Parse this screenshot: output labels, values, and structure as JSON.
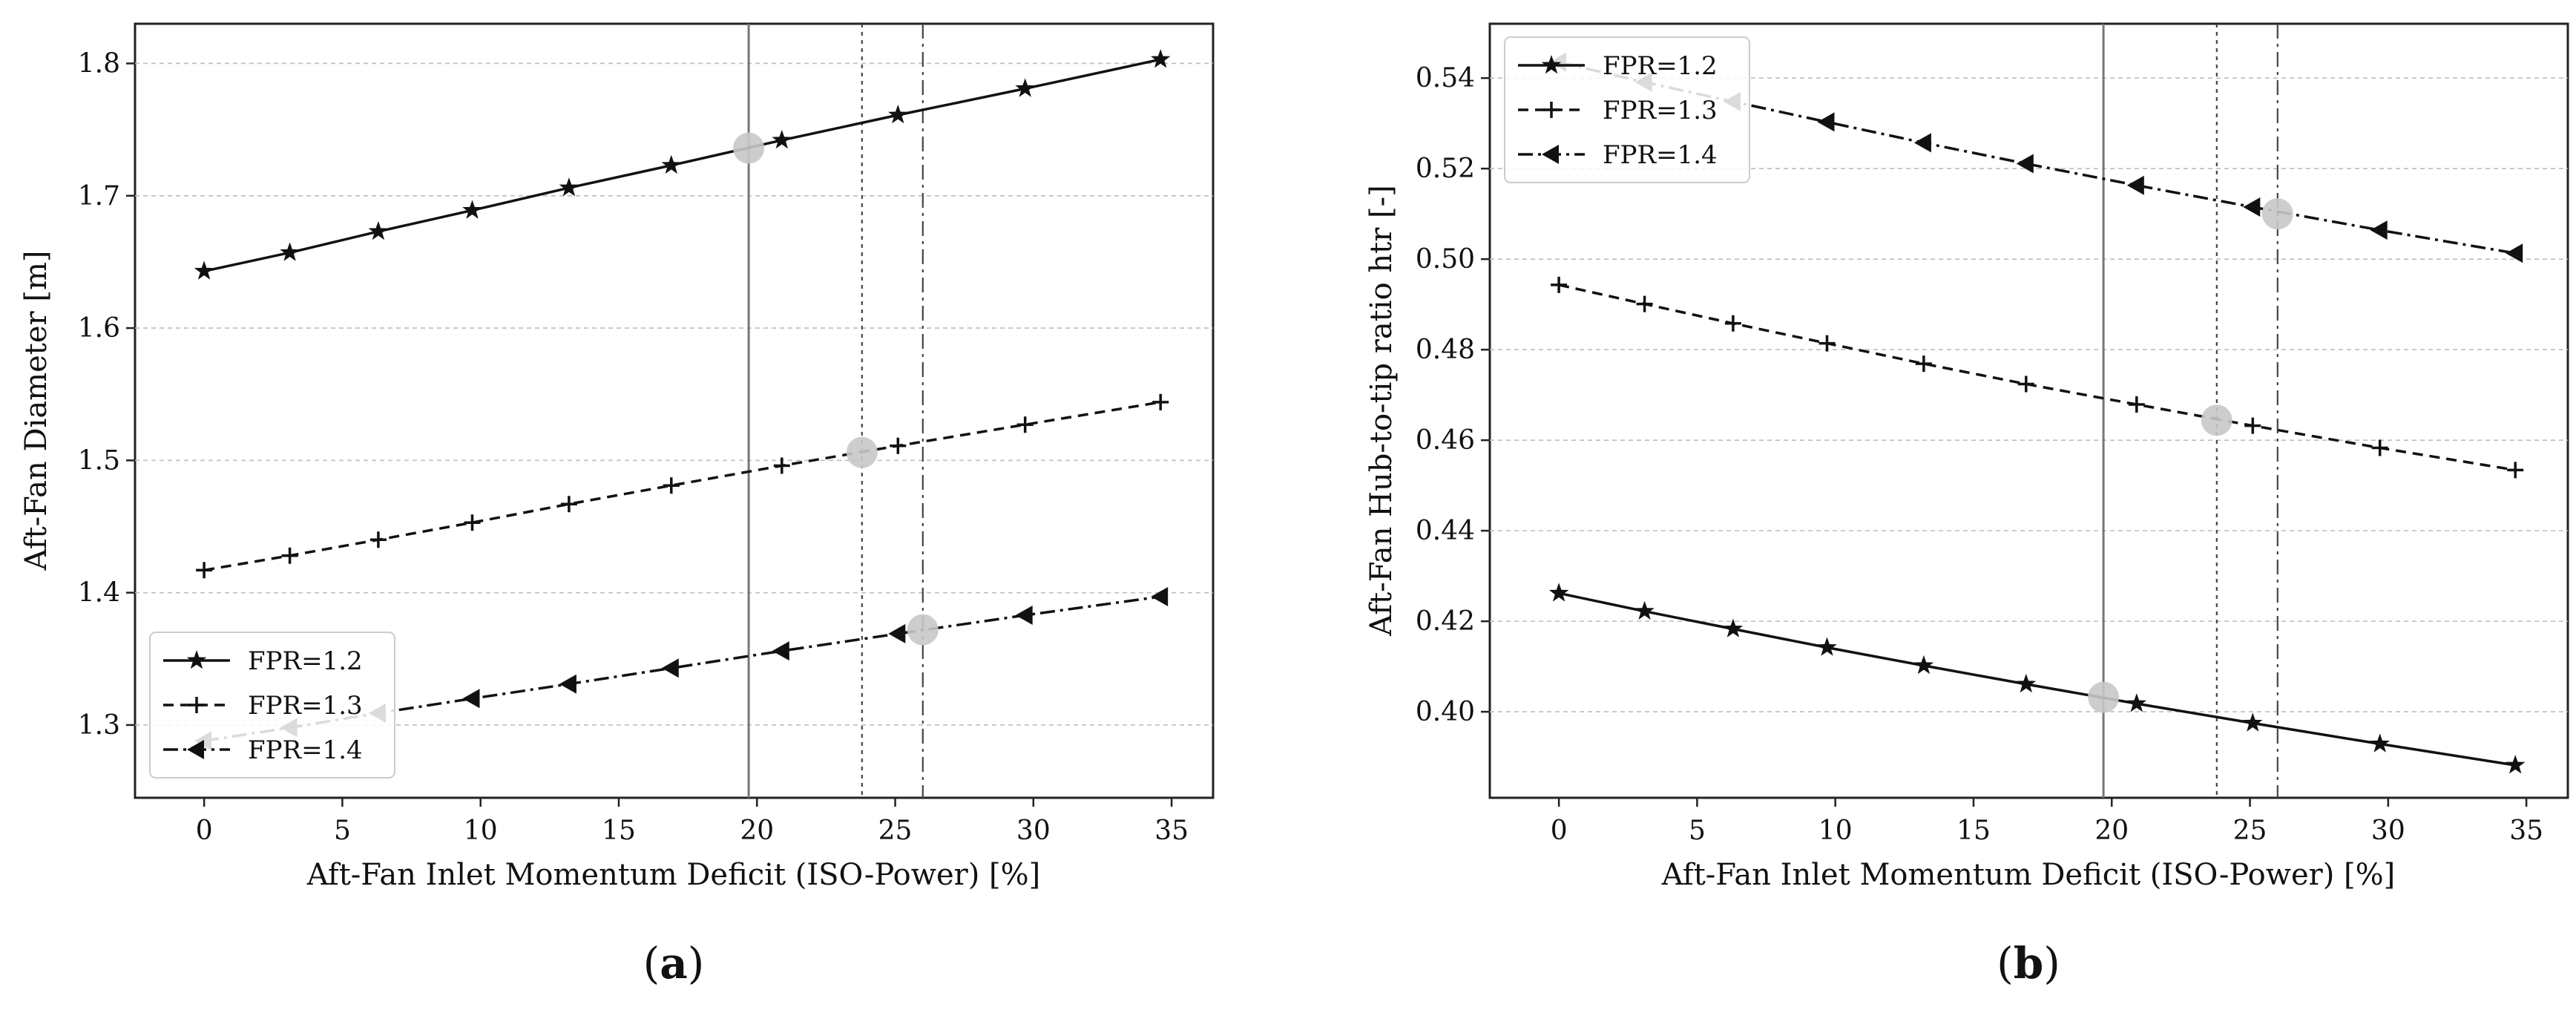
{
  "panel_labels": [
    {
      "open": "(",
      "letter": "a",
      "close": ")"
    },
    {
      "open": "(",
      "letter": "b",
      "close": ")"
    }
  ],
  "colors": {
    "line": "#111111",
    "highlight": "#c8c8c8",
    "vline": "#777777",
    "grid": "#bdbdbd"
  },
  "chart_data": [
    {
      "type": "line",
      "xlabel": "Aft-Fan Inlet Momentum Deficit (ISO-Power) [%]",
      "ylabel": "Aft-Fan Diameter [m]",
      "xlim": [
        -2.5,
        36.5
      ],
      "ylim": [
        1.245,
        1.83
      ],
      "xticks": [
        0,
        5,
        10,
        15,
        20,
        25,
        30,
        35
      ],
      "yticks": [
        1.3,
        1.4,
        1.5,
        1.6,
        1.7,
        1.8
      ],
      "ytick_labels": [
        "1.3",
        "1.4",
        "1.5",
        "1.6",
        "1.7",
        "1.8"
      ],
      "legend": {
        "position": "lower-left",
        "entries": [
          "FPR=1.2",
          "FPR=1.3",
          "FPR=1.4"
        ]
      },
      "x": [
        0,
        3.1,
        6.3,
        9.7,
        13.2,
        16.9,
        20.9,
        25.1,
        29.7,
        34.6
      ],
      "series": [
        {
          "name": "FPR=1.2",
          "style": "solid",
          "marker": "star",
          "values": [
            1.643,
            1.657,
            1.673,
            1.689,
            1.706,
            1.723,
            1.742,
            1.761,
            1.781,
            1.803
          ]
        },
        {
          "name": "FPR=1.3",
          "style": "dashed",
          "marker": "plus",
          "values": [
            1.417,
            1.428,
            1.44,
            1.453,
            1.467,
            1.481,
            1.496,
            1.511,
            1.527,
            1.544
          ]
        },
        {
          "name": "FPR=1.4",
          "style": "dashdot",
          "marker": "triangle-left",
          "values": [
            1.288,
            1.298,
            1.309,
            1.32,
            1.331,
            1.343,
            1.356,
            1.369,
            1.383,
            1.397
          ]
        }
      ],
      "highlight_points": [
        {
          "series": "FPR=1.2",
          "x": 19.7,
          "y": 1.736
        },
        {
          "series": "FPR=1.3",
          "x": 23.8,
          "y": 1.506
        },
        {
          "series": "FPR=1.4",
          "x": 26.0,
          "y": 1.372
        }
      ],
      "vlines": [
        {
          "x": 19.7,
          "style": "solid"
        },
        {
          "x": 23.8,
          "style": "dotted"
        },
        {
          "x": 26.0,
          "style": "dashdot"
        }
      ]
    },
    {
      "type": "line",
      "xlabel": "Aft-Fan Inlet Momentum Deficit (ISO-Power) [%]",
      "ylabel": "Aft-Fan Hub-to-tip ratio htr [-]",
      "xlim": [
        -2.5,
        36.5
      ],
      "ylim": [
        0.381,
        0.552
      ],
      "xticks": [
        0,
        5,
        10,
        15,
        20,
        25,
        30,
        35
      ],
      "yticks": [
        0.4,
        0.42,
        0.44,
        0.46,
        0.48,
        0.5,
        0.52,
        0.54
      ],
      "ytick_labels": [
        "0.40",
        "0.42",
        "0.44",
        "0.46",
        "0.48",
        "0.50",
        "0.52",
        "0.54"
      ],
      "legend": {
        "position": "upper-left",
        "entries": [
          "FPR=1.2",
          "FPR=1.3",
          "FPR=1.4"
        ]
      },
      "x": [
        0,
        3.1,
        6.3,
        9.7,
        13.2,
        16.9,
        20.9,
        25.1,
        29.7,
        34.6
      ],
      "series": [
        {
          "name": "FPR=1.2",
          "style": "solid",
          "marker": "star",
          "values": [
            0.4262,
            0.4222,
            0.4183,
            0.4142,
            0.4102,
            0.4061,
            0.4018,
            0.3975,
            0.3929,
            0.3882
          ]
        },
        {
          "name": "FPR=1.3",
          "style": "dashed",
          "marker": "plus",
          "values": [
            0.4943,
            0.4901,
            0.4858,
            0.4814,
            0.4769,
            0.4724,
            0.4679,
            0.4632,
            0.4583,
            0.4534
          ]
        },
        {
          "name": "FPR=1.4",
          "style": "dashdot",
          "marker": "triangle-left",
          "values": [
            0.5435,
            0.5391,
            0.5348,
            0.5303,
            0.5257,
            0.5211,
            0.5163,
            0.5115,
            0.5064,
            0.5013
          ]
        }
      ],
      "highlight_points": [
        {
          "series": "FPR=1.2",
          "x": 19.7,
          "y": 0.4032
        },
        {
          "series": "FPR=1.3",
          "x": 23.8,
          "y": 0.4644
        },
        {
          "series": "FPR=1.4",
          "x": 26.0,
          "y": 0.51
        }
      ],
      "vlines": [
        {
          "x": 19.7,
          "style": "solid"
        },
        {
          "x": 23.8,
          "style": "dotted"
        },
        {
          "x": 26.0,
          "style": "dashdot"
        }
      ]
    }
  ]
}
